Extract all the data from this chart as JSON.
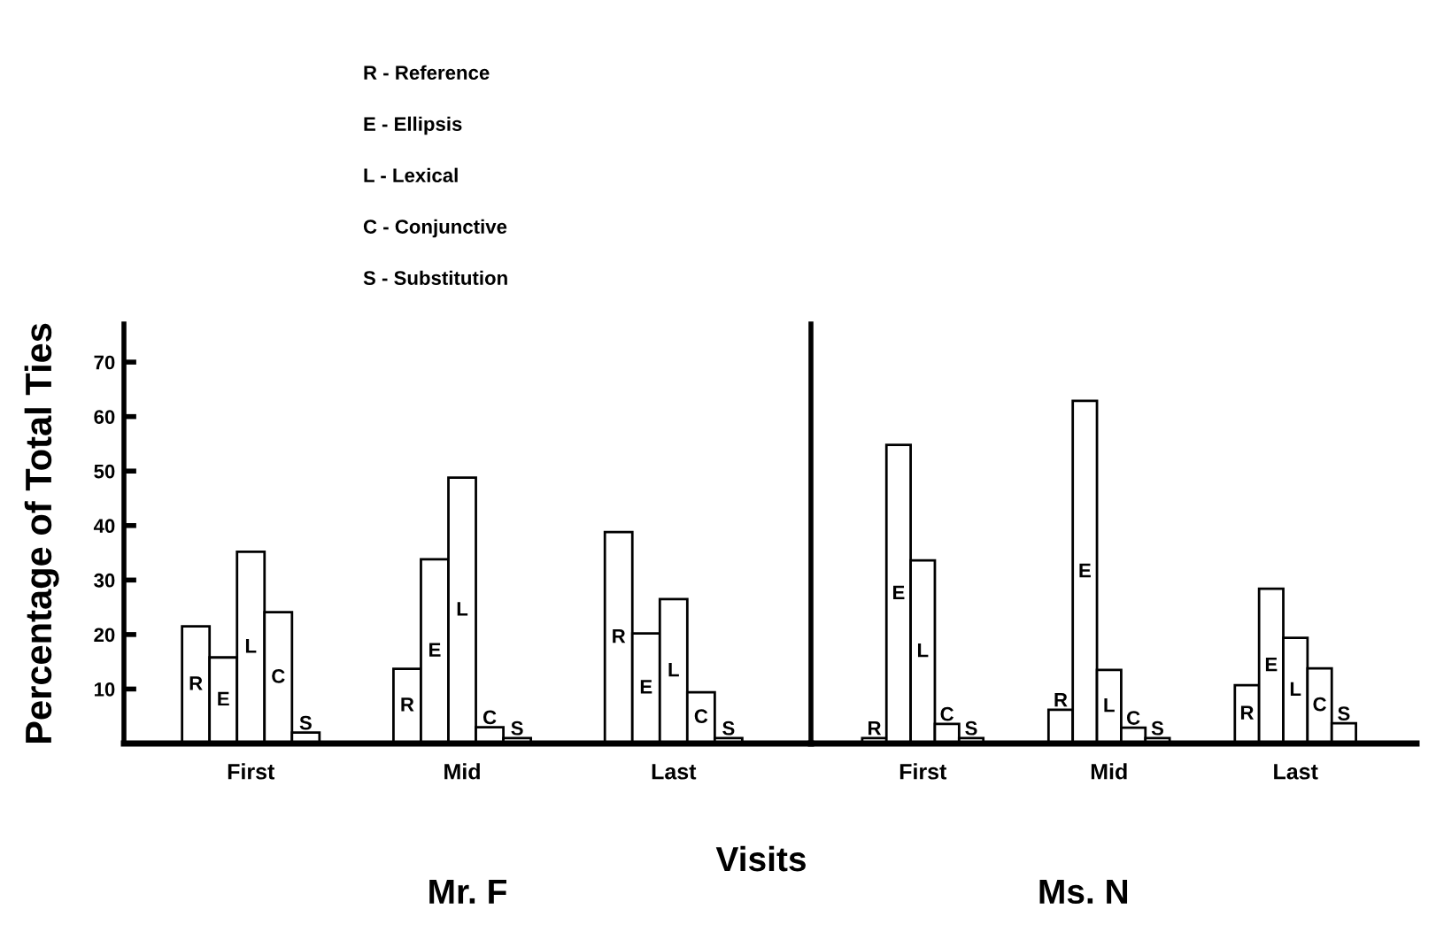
{
  "chart_data": [
    {
      "type": "bar",
      "title": "Mr. F",
      "xlabel": "Visits",
      "ylabel": "Percentage of Total Ties",
      "annotations": [
        "R - Reference",
        "E - Ellipsis",
        "L - Lexical",
        "C - Conjunctive",
        "S - Substitution"
      ],
      "categories": [
        "First",
        "Mid",
        "Last"
      ],
      "series": [
        {
          "name": "R",
          "color": "#ffffff",
          "values": [
            21.5,
            13.7,
            38.8
          ]
        },
        {
          "name": "E",
          "color": "#ffffff",
          "values": [
            15.8,
            33.8,
            20.2
          ]
        },
        {
          "name": "L",
          "color": "#ffffff",
          "values": [
            35.2,
            48.8,
            26.5
          ]
        },
        {
          "name": "C",
          "color": "#ffffff",
          "values": [
            24.1,
            3,
            9.4
          ]
        },
        {
          "name": "S",
          "color": "#ffffff",
          "values": [
            2,
            1,
            1
          ]
        }
      ],
      "ylim": [
        0,
        77
      ],
      "yticks": [
        10,
        20,
        30,
        40,
        50,
        60,
        70
      ],
      "grid": false
    },
    {
      "type": "bar",
      "title": "Ms. N",
      "categories": [
        "First",
        "Mid",
        "Last"
      ],
      "series": [
        {
          "name": "R",
          "color": "#ffffff",
          "values": [
            1,
            6.2,
            10.7
          ]
        },
        {
          "name": "E",
          "color": "#ffffff",
          "values": [
            54.8,
            62.9,
            28.4
          ]
        },
        {
          "name": "L",
          "color": "#ffffff",
          "values": [
            33.6,
            13.5,
            19.4
          ]
        },
        {
          "name": "C",
          "color": "#ffffff",
          "values": [
            3.6,
            2.9,
            13.8
          ]
        },
        {
          "name": "S",
          "color": "#ffffff",
          "values": [
            1,
            1,
            3.7
          ]
        }
      ],
      "ylim": [
        0,
        77
      ],
      "yticks": [
        10,
        20,
        30,
        40,
        50,
        60,
        70
      ],
      "tick_labels": "x",
      "grid": false
    }
  ]
}
